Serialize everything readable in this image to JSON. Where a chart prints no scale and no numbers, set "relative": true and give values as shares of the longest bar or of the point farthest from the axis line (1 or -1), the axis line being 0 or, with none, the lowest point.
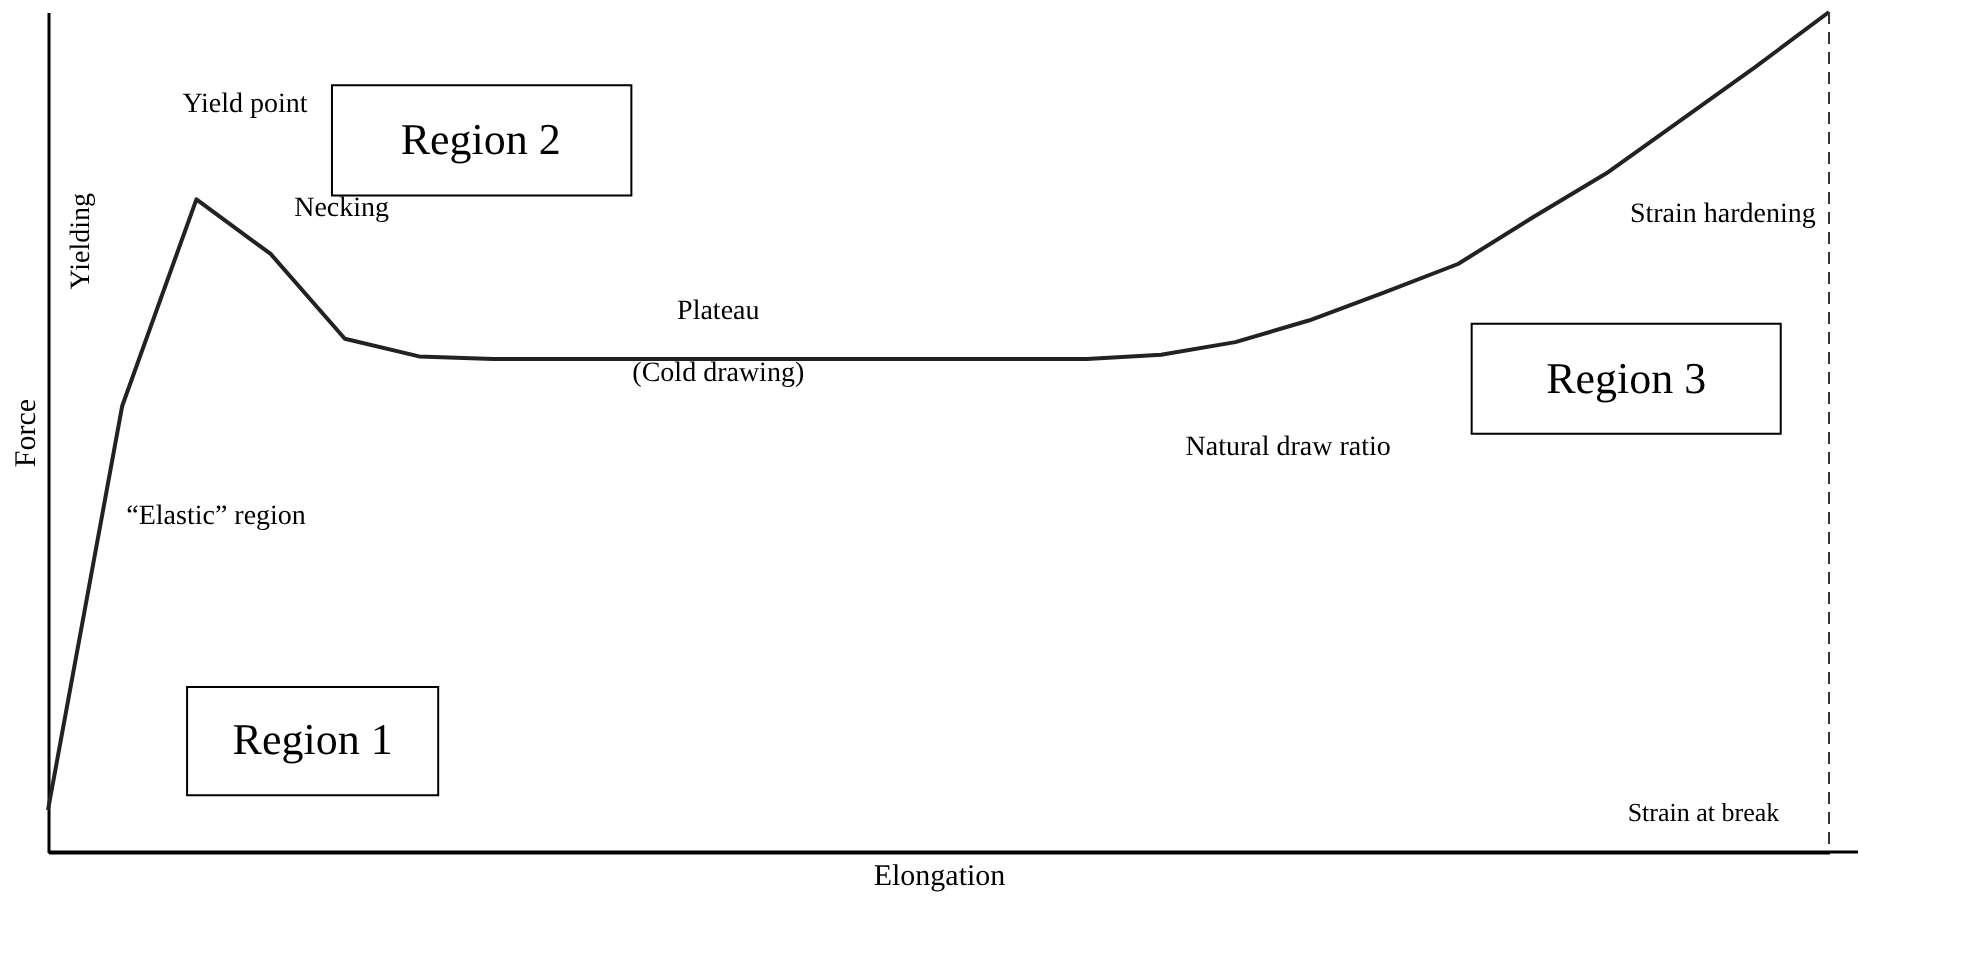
{
  "chart_data": {
    "type": "line",
    "relative": true,
    "xlabel": "Elongation",
    "ylabel": "Force",
    "categories": [
      null,
      null,
      null,
      null,
      null,
      null,
      null,
      null,
      null,
      null,
      null,
      null,
      null,
      null,
      null,
      null,
      null,
      null,
      null,
      null,
      null,
      null,
      null,
      null,
      null
    ],
    "series": [
      {
        "color": "#222222",
        "values": [
          0.05,
          0.531,
          0.777,
          0.712,
          0.611,
          0.59,
          0.587,
          0.587,
          0.587,
          0.587,
          0.587,
          0.587,
          0.587,
          0.587,
          0.587,
          0.592,
          0.607,
          0.633,
          0.666,
          0.7,
          0.755,
          0.808,
          0.871,
          0.934,
          1
        ]
      }
    ],
    "annotations": [
      "Yield point",
      "Yielding",
      "Necking",
      "Plateau",
      "(Cold drawing)",
      "Natural draw ratio",
      "Strain hardening",
      "“Elastic” region",
      "Region 1",
      "Region 2",
      "Region 3",
      "Strain at break"
    ],
    "tick_labels": false,
    "grid": false,
    "line_style": "solid",
    "marker": "none"
  }
}
